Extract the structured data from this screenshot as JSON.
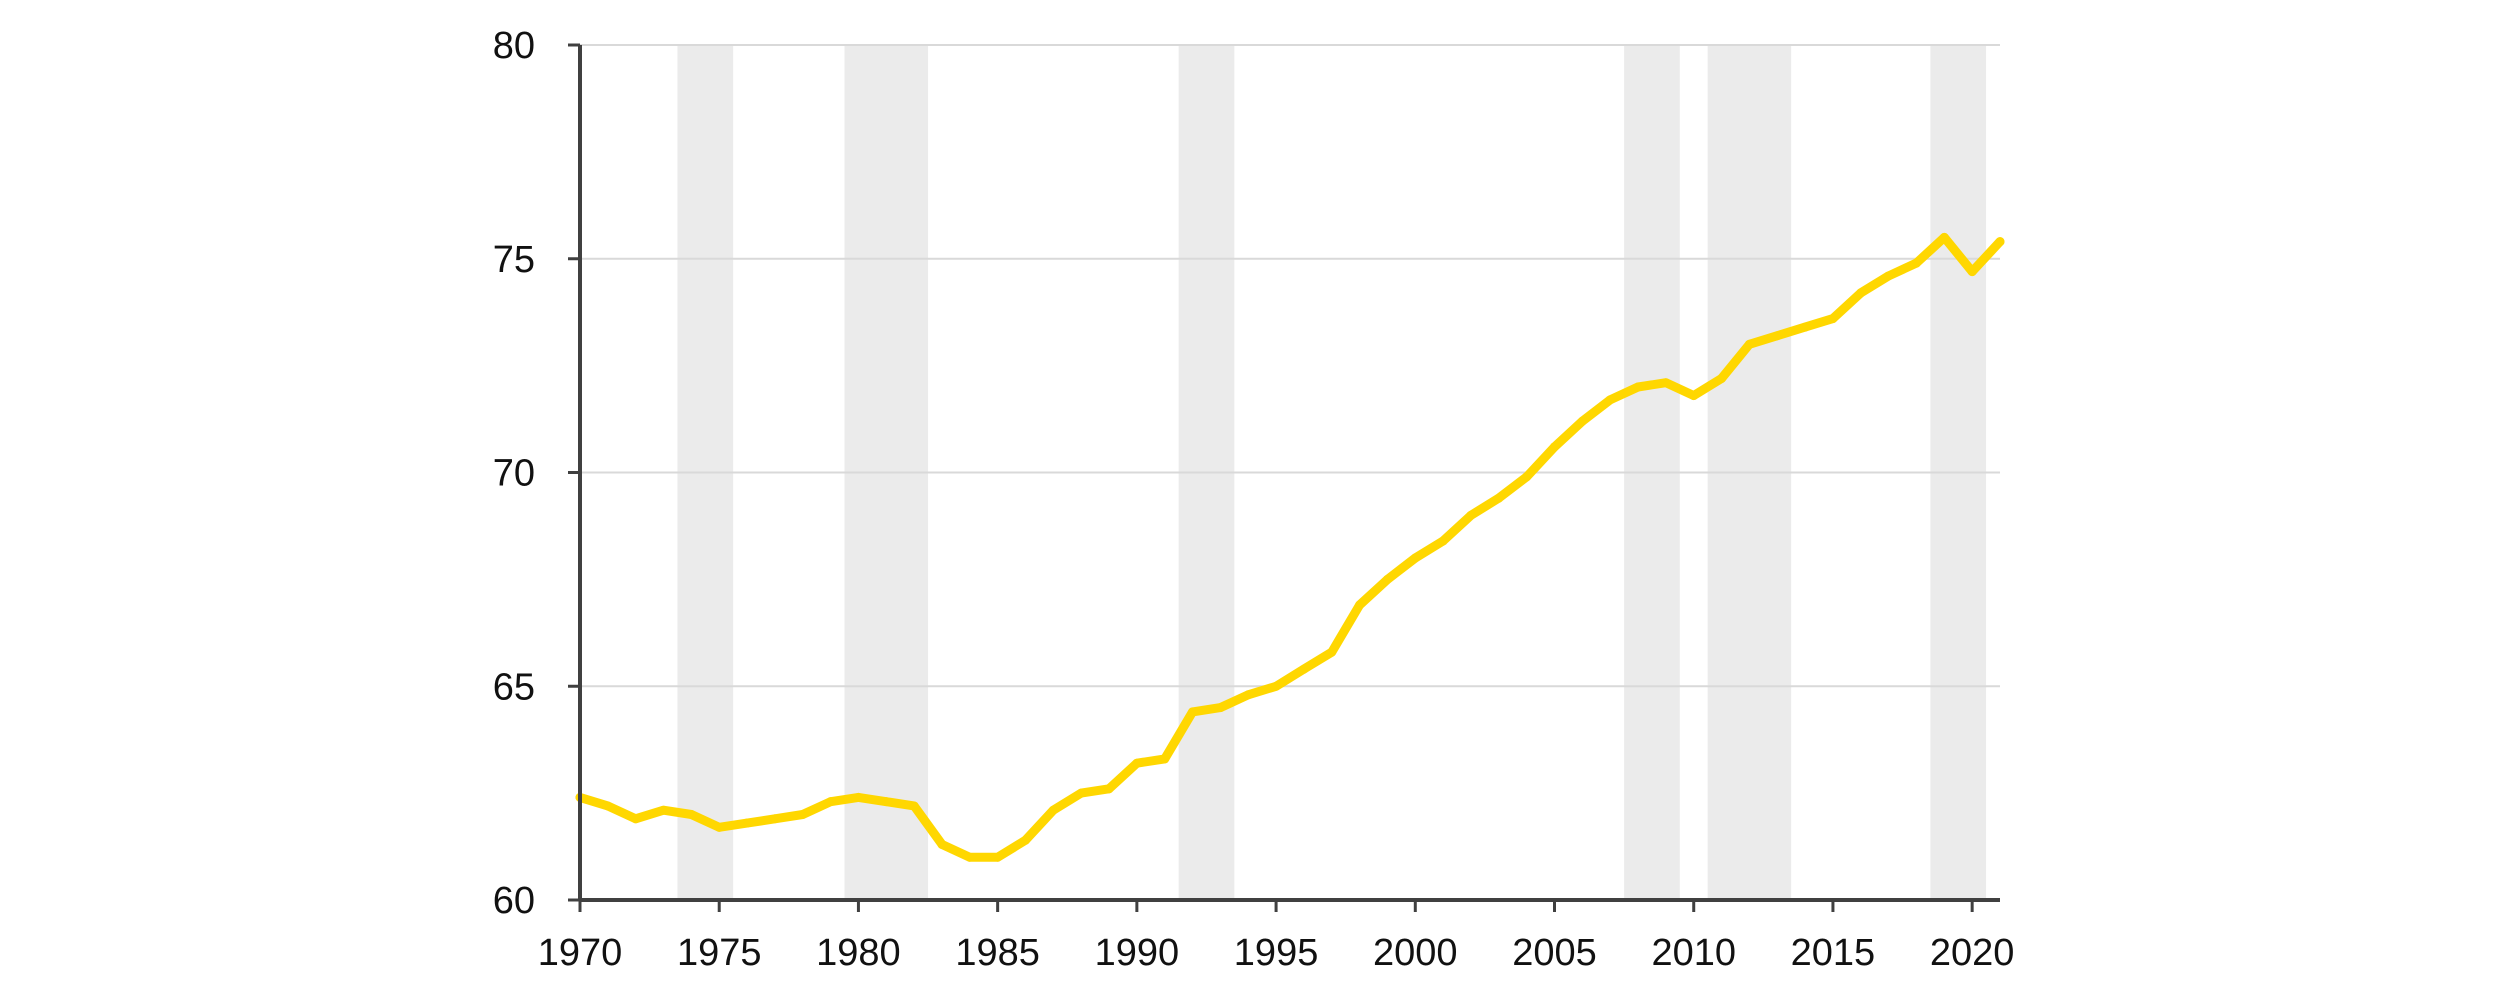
{
  "chart_data": {
    "type": "line",
    "title": "",
    "xlabel": "",
    "ylabel": "",
    "xlim": [
      1970,
      2021
    ],
    "ylim": [
      60,
      80
    ],
    "grid": true,
    "x_ticks": [
      1970,
      1975,
      1980,
      1985,
      1990,
      1995,
      2000,
      2005,
      2010,
      2015,
      2020
    ],
    "x_tick_labels": [
      "1970",
      "1975",
      "1980",
      "1985",
      "1990",
      "1995",
      "2000",
      "2005",
      "2010",
      "2015",
      "2020"
    ],
    "y_ticks": [
      60,
      65,
      70,
      75,
      80
    ],
    "y_tick_labels": [
      "60",
      "65",
      "70",
      "75",
      "80"
    ],
    "shaded_periods": [
      [
        1973.5,
        1975.5
      ],
      [
        1979.5,
        1982.5
      ],
      [
        1991.5,
        1993.5
      ],
      [
        2007.5,
        2009.5
      ],
      [
        2010.5,
        2013.5
      ],
      [
        2018.5,
        2020.5
      ]
    ],
    "series": [
      {
        "color": "#FFD700",
        "x": [
          1970,
          1971,
          1972,
          1973,
          1974,
          1975,
          1976,
          1977,
          1978,
          1979,
          1980,
          1981,
          1982,
          1983,
          1984,
          1985,
          1986,
          1987,
          1988,
          1989,
          1990,
          1991,
          1992,
          1993,
          1994,
          1995,
          1996,
          1997,
          1998,
          1999,
          2000,
          2001,
          2002,
          2003,
          2004,
          2005,
          2006,
          2007,
          2008,
          2009,
          2010,
          2011,
          2012,
          2013,
          2014,
          2015,
          2016,
          2017,
          2018,
          2019,
          2020,
          2021
        ],
        "values": [
          62.4,
          62.2,
          61.9,
          62.1,
          62.0,
          61.7,
          61.8,
          61.9,
          62.0,
          62.3,
          62.4,
          62.3,
          62.2,
          61.3,
          61.0,
          61.0,
          61.4,
          62.1,
          62.5,
          62.6,
          63.2,
          63.3,
          64.4,
          64.5,
          64.8,
          65.0,
          65.4,
          65.8,
          66.9,
          67.5,
          68.0,
          68.4,
          69.0,
          69.4,
          69.9,
          70.6,
          71.2,
          71.7,
          72.0,
          72.1,
          71.8,
          72.2,
          73.0,
          73.2,
          73.4,
          73.6,
          74.2,
          74.6,
          74.9,
          75.5,
          74.7,
          75.4
        ]
      }
    ]
  },
  "colors": {
    "line": "#FFD700",
    "shade": "#ebebeb",
    "grid": "#d9d9d9",
    "axis": "#404040"
  }
}
